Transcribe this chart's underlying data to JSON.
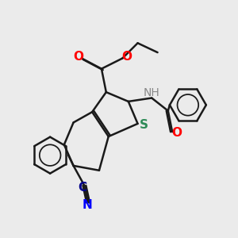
{
  "bg_color": "#ebebeb",
  "bond_color": "#1a1a1a",
  "bond_width": 1.8,
  "atom_colors": {
    "S": "#2e8b57",
    "N": "#0000ff",
    "O": "#ff0000",
    "C_cyan": "#00008b",
    "H": "#888888"
  },
  "font_size_atoms": 11,
  "font_size_small": 9
}
